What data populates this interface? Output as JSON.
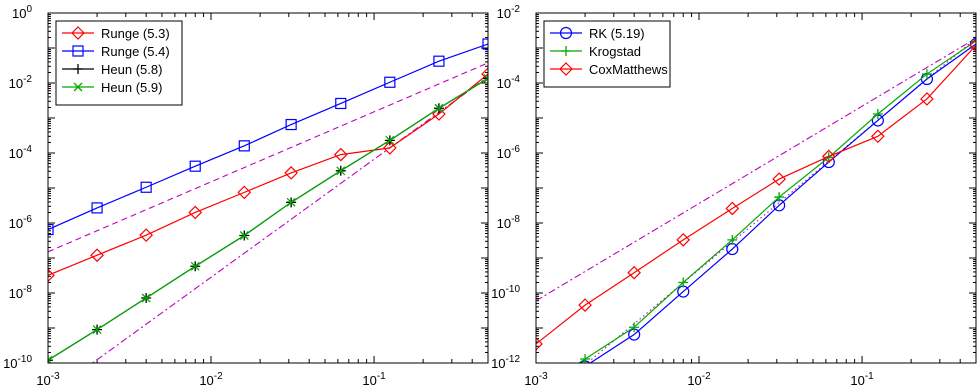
{
  "chart_data": [
    {
      "type": "line",
      "xscale": "log",
      "yscale": "log",
      "xlim": [
        0.001,
        0.5
      ],
      "ylim": [
        1e-10,
        1
      ],
      "xticks": [
        {
          "value": 0.001,
          "base": "10",
          "exp": "-3"
        },
        {
          "value": 0.01,
          "base": "10",
          "exp": "-2"
        },
        {
          "value": 0.1,
          "base": "10",
          "exp": "-1"
        }
      ],
      "yticks": [
        {
          "value": 1e-10,
          "base": "10",
          "exp": "-10"
        },
        {
          "value": 1e-08,
          "base": "10",
          "exp": "-8"
        },
        {
          "value": 1e-06,
          "base": "10",
          "exp": "-6"
        },
        {
          "value": 0.0001,
          "base": "10",
          "exp": "-4"
        },
        {
          "value": 0.01,
          "base": "10",
          "exp": "-2"
        },
        {
          "value": 1,
          "base": "10",
          "exp": "0"
        }
      ],
      "grid": false,
      "legend_position": "top-left",
      "x": [
        0.001,
        0.002,
        0.004,
        0.008,
        0.016,
        0.031,
        0.0625,
        0.125,
        0.25,
        0.5
      ],
      "series": [
        {
          "name": "Runge (5.3)",
          "color": "#ff0000",
          "marker": "diamond",
          "values": [
            3.2e-08,
            1.2e-07,
            4.5e-07,
            2e-06,
            7.5e-06,
            2.7e-05,
            9e-05,
            0.00014,
            0.0013,
            0.018
          ]
        },
        {
          "name": "Runge (5.4)",
          "color": "#0000ff",
          "marker": "square",
          "values": [
            6.5e-07,
            2.7e-06,
            1.05e-05,
            4.2e-05,
            0.00016,
            0.00065,
            0.0026,
            0.0105,
            0.042,
            0.13
          ]
        },
        {
          "name": "Heun (5.8)",
          "color": "#000000",
          "marker": "plus",
          "values": [
            1.2e-10,
            9e-10,
            7.2e-09,
            5.8e-08,
            4.4e-07,
            3.9e-06,
            3.1e-05,
            0.00023,
            0.0019,
            0.0135
          ]
        },
        {
          "name": "Heun (5.9)",
          "color": "#00aa00",
          "marker": "x",
          "values": [
            1.2e-10,
            9e-10,
            7.2e-09,
            5.8e-08,
            4.4e-07,
            3.9e-06,
            3.1e-05,
            0.00023,
            0.0019,
            0.0135
          ]
        }
      ],
      "reference_lines": [
        {
          "style": "dashed",
          "color": "#c000c0",
          "x": [
            0.001,
            0.5
          ],
          "y": [
            1.5e-07,
            0.0375
          ]
        },
        {
          "style": "dashdot",
          "color": "#c000c0",
          "x": [
            0.001,
            0.5
          ],
          "y": [
            1.2e-11,
            0.015
          ]
        }
      ]
    },
    {
      "type": "line",
      "xscale": "log",
      "yscale": "log",
      "xlim": [
        0.001,
        0.5
      ],
      "ylim": [
        1e-12,
        0.01
      ],
      "xticks": [
        {
          "value": 0.001,
          "base": "10",
          "exp": "-3"
        },
        {
          "value": 0.01,
          "base": "10",
          "exp": "-2"
        },
        {
          "value": 0.1,
          "base": "10",
          "exp": "-1"
        }
      ],
      "yticks": [
        {
          "value": 1e-12,
          "base": "10",
          "exp": "-12"
        },
        {
          "value": 1e-10,
          "base": "10",
          "exp": "-10"
        },
        {
          "value": 1e-08,
          "base": "10",
          "exp": "-8"
        },
        {
          "value": 1e-06,
          "base": "10",
          "exp": "-6"
        },
        {
          "value": 0.0001,
          "base": "10",
          "exp": "-4"
        },
        {
          "value": 0.01,
          "base": "10",
          "exp": "-2"
        }
      ],
      "grid": false,
      "legend_position": "top-left",
      "x": [
        0.001,
        0.002,
        0.004,
        0.008,
        0.016,
        0.031,
        0.0625,
        0.125,
        0.25,
        0.5
      ],
      "series": [
        {
          "name": "RK (5.19)",
          "color": "#0000ff",
          "marker": "circle",
          "values": [
            null,
            8e-13,
            6.5e-12,
            1.1e-10,
            1.8e-09,
            3.2e-08,
            5.5e-07,
            8.5e-06,
            0.00013,
            0.0013
          ]
        },
        {
          "name": "Krogstad",
          "color": "#00aa00",
          "marker": "plus",
          "values": [
            null,
            1.3e-12,
            1.05e-11,
            2e-10,
            3.3e-09,
            5.5e-08,
            7.5e-07,
            1.3e-05,
            0.00018,
            0.0016
          ]
        },
        {
          "name": "CoxMatthews",
          "color": "#ff0000",
          "marker": "diamond",
          "values": [
            3.5e-12,
            4.5e-11,
            3.8e-10,
            3.3e-09,
            2.6e-08,
            1.8e-07,
            8e-07,
            3e-06,
            3.5e-05,
            0.0012
          ]
        }
      ],
      "reference_lines": [
        {
          "style": "dashdot",
          "color": "#c000c0",
          "x": [
            0.001,
            0.5
          ],
          "y": [
            6e-11,
            0.0019
          ]
        },
        {
          "style": "dotted",
          "color": "#c000c0",
          "x": [
            0.001,
            0.5
          ],
          "y": [
            6e-14,
            0.0019
          ]
        }
      ]
    }
  ]
}
